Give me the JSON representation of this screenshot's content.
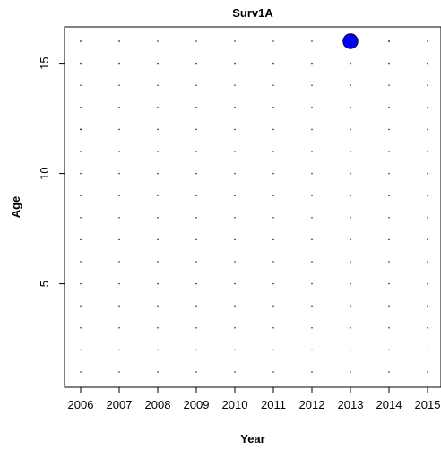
{
  "chart_data": {
    "type": "scatter",
    "title": "Surv1A",
    "xlabel": "Year",
    "ylabel": "Age",
    "xlim": [
      2006,
      2015
    ],
    "ylim": [
      1,
      16
    ],
    "x_ticks": [
      2006,
      2007,
      2008,
      2009,
      2010,
      2011,
      2012,
      2013,
      2014,
      2015
    ],
    "y_ticks": [
      5,
      10,
      15
    ],
    "grid": false,
    "legend": "none",
    "marker_fill": "#0000ff",
    "marker_stroke": "#000000",
    "years": [
      2006,
      2007,
      2008,
      2009,
      2010,
      2011,
      2012,
      2013,
      2014,
      2015
    ],
    "ages": [
      1,
      2,
      3,
      4,
      5,
      6,
      7,
      8,
      9,
      10,
      11,
      12,
      13,
      14,
      15,
      16
    ],
    "bubbles": [
      {
        "year": 2006,
        "age": 16,
        "value": 0.08
      },
      {
        "year": 2006,
        "age": 13,
        "value": 0.06
      },
      {
        "year": 2006,
        "age": 12,
        "value": 0.1
      },
      {
        "year": 2007,
        "age": 16,
        "value": 0.08
      },
      {
        "year": 2008,
        "age": 16,
        "value": 0.04
      },
      {
        "year": 2013,
        "age": 16,
        "value": 12
      },
      {
        "year": 2013,
        "age": 14,
        "value": 0.08
      },
      {
        "year": 2014,
        "age": 16,
        "value": 0.1
      },
      {
        "year": 2014,
        "age": 15,
        "value": 0.04
      }
    ],
    "baseline_value": 0.002
  }
}
